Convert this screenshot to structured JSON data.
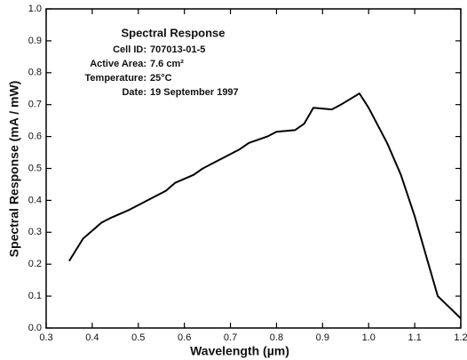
{
  "chart_data": {
    "type": "line",
    "xlabel": "Wavelength (µm)",
    "ylabel": "Spectral Response (mA / mW)",
    "annotation": {
      "title": "Spectral Response",
      "lines": [
        {
          "label": "Cell ID:",
          "value": "707013-01-5"
        },
        {
          "label": "Active Area:",
          "value": "7.6 cm²"
        },
        {
          "label": "Temperature:",
          "value": "25°C"
        },
        {
          "label": "Date:",
          "value": "19 September 1997"
        }
      ]
    },
    "color": "#000000",
    "x": [
      0.35,
      0.38,
      0.42,
      0.44,
      0.48,
      0.52,
      0.56,
      0.58,
      0.62,
      0.64,
      0.68,
      0.72,
      0.74,
      0.78,
      0.8,
      0.84,
      0.86,
      0.88,
      0.92,
      0.94,
      0.98,
      1.0,
      1.04,
      1.07,
      1.1,
      1.15,
      1.2
    ],
    "values": [
      0.21,
      0.28,
      0.33,
      0.345,
      0.37,
      0.4,
      0.43,
      0.455,
      0.48,
      0.5,
      0.53,
      0.56,
      0.58,
      0.6,
      0.615,
      0.62,
      0.64,
      0.69,
      0.685,
      0.7,
      0.735,
      0.69,
      0.58,
      0.48,
      0.35,
      0.1,
      0.03
    ],
    "xlim": [
      0.3,
      1.2
    ],
    "xticks": [
      0.3,
      0.4,
      0.5,
      0.6,
      0.7,
      0.8,
      0.9,
      {
        "value": 1,
        "label": "1.0"
      },
      1.1,
      1.2
    ],
    "ylim": [
      0,
      1
    ],
    "yticks": [
      {
        "value": 0,
        "label": "0.0"
      },
      0.1,
      0.2,
      0.3,
      0.4,
      0.5,
      0.6,
      0.7,
      0.8,
      0.9,
      {
        "value": 1,
        "label": "1.0"
      }
    ],
    "grid": false
  }
}
